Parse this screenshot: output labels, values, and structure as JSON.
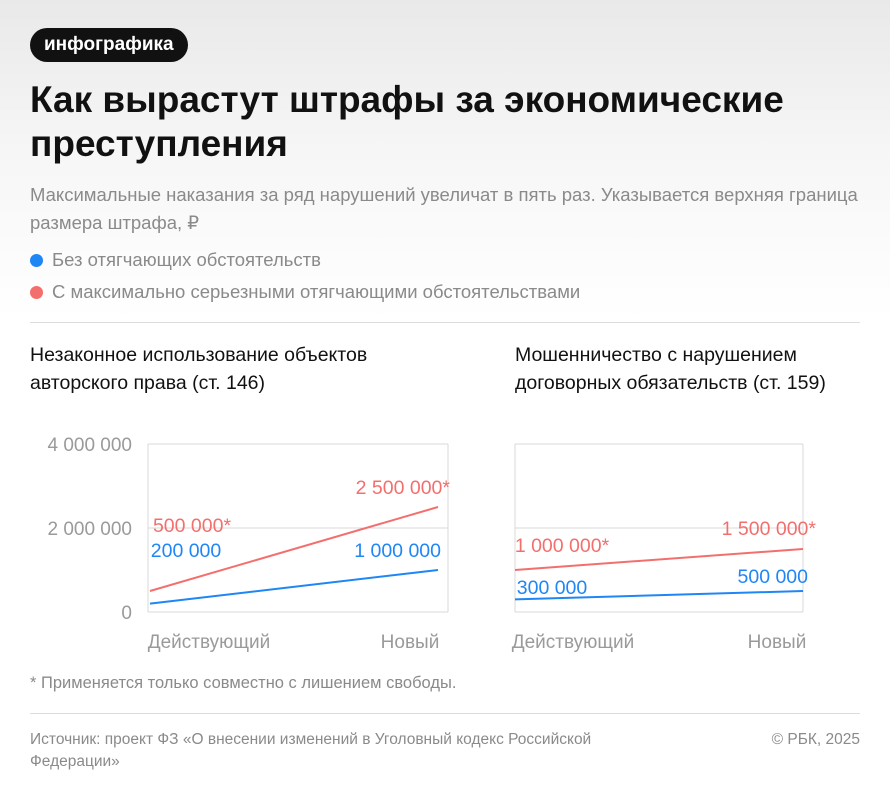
{
  "badge": "инфографика",
  "title": "Как вырастут штрафы за экономические преступления",
  "subtitle": "Максимальные наказания за ряд нарушений увеличат в пять раз. Указывается верхняя граница размера штрафа, ₽",
  "legend": [
    {
      "label": "Без отягчающих обстоятельств",
      "color": "#1f86f5"
    },
    {
      "label": "С максимально серьезными отягчающими обстоятельствами",
      "color": "#f36f6d"
    }
  ],
  "colors": {
    "blue": "#1f86f5",
    "red": "#f36f6d",
    "axis": "#9a9a9a",
    "grid": "#d8d8d8"
  },
  "chart_data": [
    {
      "type": "line",
      "title": "Незаконное использование объектов авторского права (ст. 146)",
      "categories": [
        "Действующий",
        "Новый"
      ],
      "ylim": [
        0,
        4000000
      ],
      "yticks": [
        {
          "value": 0,
          "label": "0"
        },
        {
          "value": 2000000,
          "label": "2 000 000"
        },
        {
          "value": 4000000,
          "label": "4 000 000"
        }
      ],
      "series": [
        {
          "name": "Без отягчающих обстоятельств",
          "color": "#1f86f5",
          "values": [
            200000,
            1000000
          ],
          "labels": [
            "200 000",
            "1 000 000"
          ]
        },
        {
          "name": "С максимально серьезными отягчающими обстоятельствами",
          "color": "#f36f6d",
          "values": [
            500000,
            2500000
          ],
          "labels": [
            "500 000*",
            "2 500 000*"
          ]
        }
      ]
    },
    {
      "type": "line",
      "title": "Мошенничество с нарушением договорных обязательств (ст. 159)",
      "categories": [
        "Действующий",
        "Новый"
      ],
      "ylim": [
        0,
        4000000
      ],
      "series": [
        {
          "name": "Без отягчающих обстоятельств",
          "color": "#1f86f5",
          "values": [
            300000,
            500000
          ],
          "labels": [
            "300 000",
            "500 000"
          ]
        },
        {
          "name": "С максимально серьезными отягчающими обстоятельствами",
          "color": "#f36f6d",
          "values": [
            1000000,
            1500000
          ],
          "labels": [
            "1 000 000*",
            "1 500 000*"
          ]
        }
      ]
    }
  ],
  "footnote": "* Применяется только совместно с лишением свободы.",
  "source": "Источник: проект ФЗ «О внесении изменений в Уголовный кодекс Российской Федерации»",
  "copyright": "© РБК, 2025"
}
